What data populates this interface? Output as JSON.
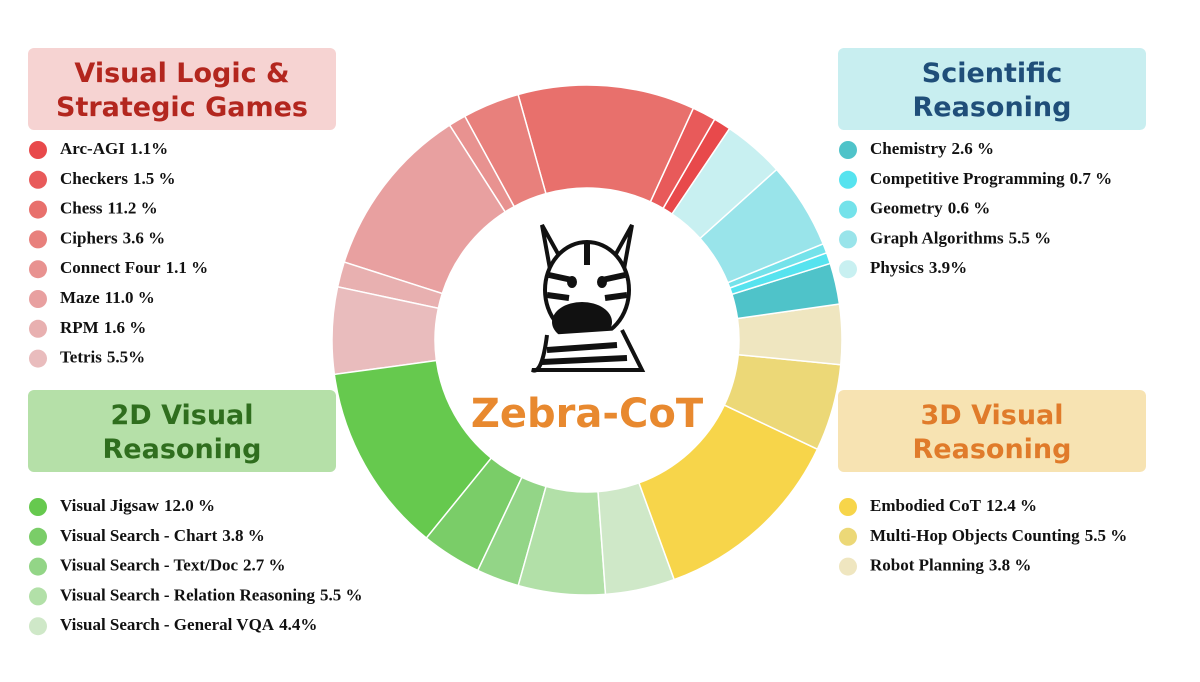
{
  "chart_data": {
    "type": "pie",
    "donut": true,
    "center_label": "Zebra-CoT",
    "groups": [
      {
        "title": "Visual Logic & Strategic Games",
        "box_color": "#f6d3d2",
        "title_color": "#b3261e",
        "categories": [
          "Arc-AGI",
          "Checkers",
          "Chess",
          "Ciphers",
          "Connect Four",
          "Maze",
          "RPM",
          "Tetris"
        ],
        "values": [
          1.1,
          1.5,
          11.2,
          3.6,
          1.1,
          11.0,
          1.6,
          5.5
        ],
        "value_labels": [
          "1.1%",
          "1.5 %",
          "11.2 %",
          "3.6 %",
          "1.1 %",
          "11.0 %",
          "1.6 %",
          "5.5%"
        ],
        "colors": [
          "#e8494b",
          "#e85a5a",
          "#e8706c",
          "#e8807c",
          "#e89290",
          "#e8a0a0",
          "#e8b0b0",
          "#e9bcbd"
        ]
      },
      {
        "title": "2D Visual Reasoning",
        "box_color": "#b5e0a8",
        "title_color": "#2f6e1e",
        "categories": [
          "Visual Jigsaw",
          "Visual Search - Chart",
          "Visual Search - Text/Doc",
          "Visual Search - Relation Reasoning",
          "Visual Search - General VQA"
        ],
        "values": [
          12.0,
          3.8,
          2.7,
          5.5,
          4.4
        ],
        "value_labels": [
          "12.0 %",
          "3.8 %",
          "2.7 %",
          "5.5 %",
          "4.4%"
        ],
        "colors": [
          "#66c94e",
          "#7acd68",
          "#93d587",
          "#b2e0a8",
          "#cfe8c8"
        ]
      },
      {
        "title": "3D Visual Reasoning",
        "box_color": "#f7e3b2",
        "title_color": "#e07b2a",
        "categories": [
          "Embodied CoT",
          "Multi-Hop Objects Counting",
          "Robot Planning"
        ],
        "values": [
          12.4,
          5.5,
          3.8
        ],
        "value_labels": [
          "12.4 %",
          "5.5 %",
          "3.8 %"
        ],
        "colors": [
          "#f7d54a",
          "#ecd877",
          "#efe6c0"
        ]
      },
      {
        "title": "Scientific Reasoning",
        "box_color": "#c8eef0",
        "title_color": "#1f4e79",
        "categories": [
          "Chemistry",
          "Competitive Programming",
          "Geometry",
          "Graph Algorithms",
          "Physics"
        ],
        "values": [
          2.6,
          0.7,
          0.6,
          5.5,
          3.9
        ],
        "value_labels": [
          "2.6 %",
          "0.7 %",
          "0.6 %",
          "5.5 %",
          "3.9%"
        ],
        "colors": [
          "#4fc3c9",
          "#56e3ef",
          "#74e2ea",
          "#99e4ea",
          "#c8f0f1"
        ]
      }
    ]
  }
}
